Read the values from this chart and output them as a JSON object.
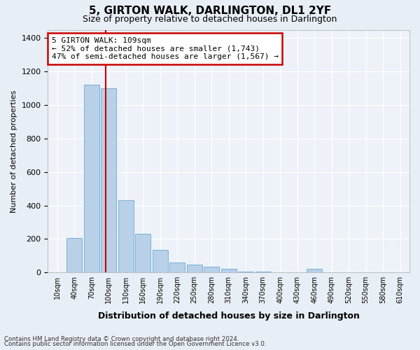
{
  "title": "5, GIRTON WALK, DARLINGTON, DL1 2YF",
  "subtitle": "Size of property relative to detached houses in Darlington",
  "xlabel": "Distribution of detached houses by size in Darlington",
  "ylabel": "Number of detached properties",
  "bin_labels": [
    "10sqm",
    "40sqm",
    "70sqm",
    "100sqm",
    "130sqm",
    "160sqm",
    "190sqm",
    "220sqm",
    "250sqm",
    "280sqm",
    "310sqm",
    "340sqm",
    "370sqm",
    "400sqm",
    "430sqm",
    "460sqm",
    "490sqm",
    "520sqm",
    "550sqm",
    "580sqm",
    "610sqm"
  ],
  "bar_values": [
    0,
    205,
    1120,
    1100,
    430,
    230,
    135,
    60,
    45,
    35,
    20,
    5,
    5,
    0,
    0,
    20,
    0,
    0,
    0,
    0,
    0
  ],
  "bar_color": "#b8d0e8",
  "bar_edge_color": "#6aaad4",
  "red_line_color": "#cc0000",
  "annotation_text": "5 GIRTON WALK: 109sqm\n← 52% of detached houses are smaller (1,743)\n47% of semi-detached houses are larger (1,567) →",
  "annotation_box_color": "#ffffff",
  "annotation_box_edge_color": "#cc0000",
  "ylim": [
    0,
    1450
  ],
  "yticks": [
    0,
    200,
    400,
    600,
    800,
    1000,
    1200,
    1400
  ],
  "footnote1": "Contains HM Land Registry data © Crown copyright and database right 2024.",
  "footnote2": "Contains public sector information licensed under the Open Government Licence v3.0.",
  "bg_color": "#e8eef5",
  "plot_bg_color": "#edf2f8",
  "title_fontsize": 11,
  "subtitle_fontsize": 9,
  "bar_width": 0.9
}
